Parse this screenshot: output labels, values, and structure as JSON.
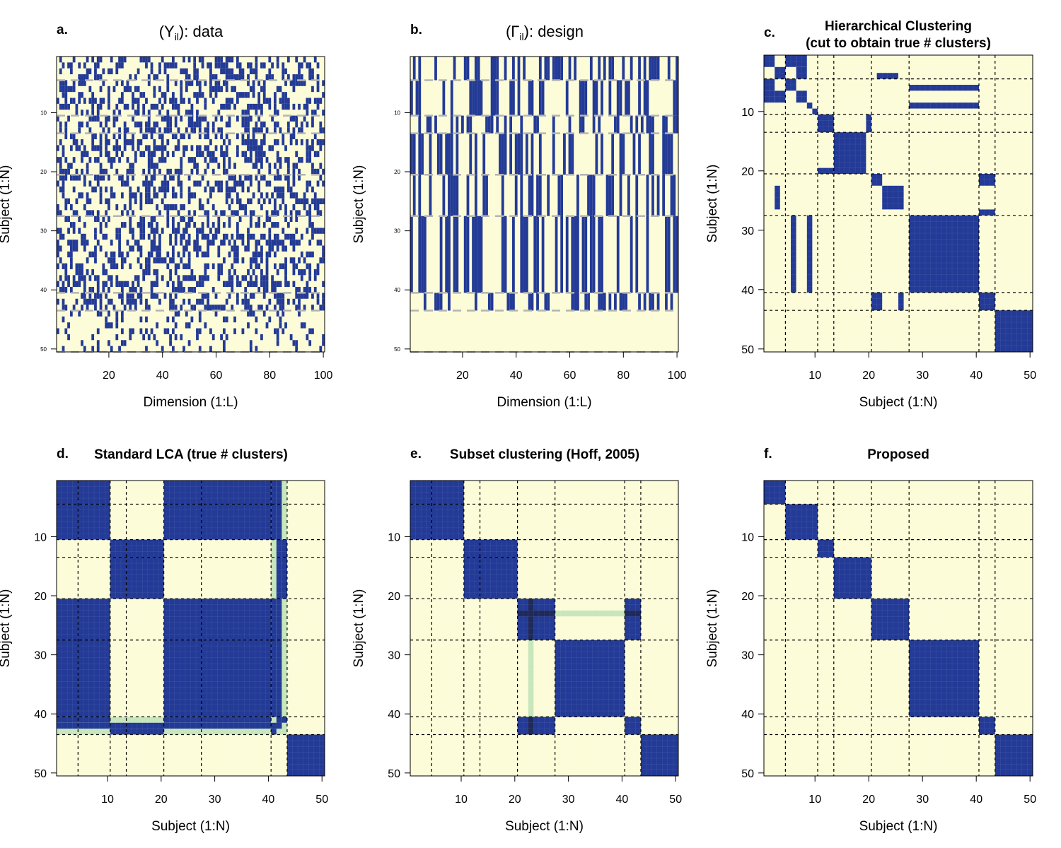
{
  "colors": {
    "zero": "#fcfcd8",
    "one": "#233a96",
    "mid": "#c8e6bc",
    "background": "#ffffff"
  },
  "grid": {
    "labels": "",
    "style": "dashed"
  },
  "chart_data": [
    {
      "type": "heatmap",
      "panel_label": "a.",
      "title": "(Y",
      "title_sub": "il",
      "title_rest": "): data",
      "xlabel": "Dimension (1:L)",
      "ylabel": "Subject (1:N)",
      "n_rows": 50,
      "n_cols": 100,
      "xticks": [
        20,
        40,
        60,
        80,
        100
      ],
      "yticks": [
        10,
        20,
        30,
        40,
        50
      ],
      "cluster_boundaries": [
        4,
        10,
        13,
        20,
        27,
        40,
        43,
        50
      ],
      "cluster_sizes": [
        4,
        6,
        3,
        7,
        7,
        13,
        3,
        7
      ],
      "note": "binary random data"
    },
    {
      "type": "heatmap",
      "panel_label": "b.",
      "title": "(Γ",
      "title_sub": "il",
      "title_rest": "): design",
      "xlabel": "Dimension (1:L)",
      "ylabel": "Subject (1:N)",
      "n_rows": 50,
      "n_cols": 100,
      "xticks": [
        20,
        40,
        60,
        80,
        100
      ],
      "yticks": [
        10,
        20,
        30,
        40,
        50
      ],
      "cluster_boundaries": [
        4,
        10,
        13,
        20,
        27,
        40,
        43,
        50
      ],
      "cluster_sizes": [
        4,
        6,
        3,
        7,
        7,
        13,
        3,
        7
      ]
    },
    {
      "type": "heatmap",
      "panel_label": "c.",
      "title": "Hierarchical Clustering",
      "title2": "(cut to obtain true # clusters)",
      "xlabel": "Subject (1:N)",
      "ylabel": "Subject (1:N)",
      "n": 50,
      "ticks": [
        10,
        20,
        30,
        40,
        50
      ],
      "cluster_boundaries": [
        4,
        10,
        13,
        20,
        27,
        40,
        43
      ],
      "blocks": [
        {
          "rows": [
            1,
            2
          ],
          "cols": [
            1,
            2
          ]
        },
        {
          "rows": [
            1,
            2
          ],
          "cols": [
            5,
            6
          ]
        },
        {
          "rows": [
            1,
            2
          ],
          "cols": [
            7,
            8
          ]
        },
        {
          "rows": [
            3,
            4
          ],
          "cols": [
            3,
            4
          ]
        },
        {
          "rows": [
            3,
            4
          ],
          "cols": [
            7,
            8
          ]
        },
        {
          "rows": [
            5,
            6
          ],
          "cols": [
            1,
            2
          ]
        },
        {
          "rows": [
            5,
            6
          ],
          "cols": [
            5,
            6
          ]
        },
        {
          "rows": [
            7,
            8
          ],
          "cols": [
            1,
            2
          ]
        },
        {
          "rows": [
            7,
            8
          ],
          "cols": [
            3,
            4
          ]
        },
        {
          "rows": [
            7,
            8
          ],
          "cols": [
            7,
            8
          ]
        },
        {
          "rows": [
            9,
            9
          ],
          "cols": [
            9,
            9
          ]
        },
        {
          "rows": [
            10,
            10
          ],
          "cols": [
            10,
            10
          ]
        },
        {
          "rows": [
            4,
            4
          ],
          "cols": [
            22,
            25
          ]
        },
        {
          "rows": [
            6,
            6
          ],
          "cols": [
            28,
            40
          ]
        },
        {
          "rows": [
            9,
            9
          ],
          "cols": [
            28,
            40
          ]
        },
        {
          "rows": [
            11,
            13
          ],
          "cols": [
            11,
            13
          ]
        },
        {
          "rows": [
            11,
            13
          ],
          "cols": [
            20,
            20
          ]
        },
        {
          "rows": [
            14,
            20
          ],
          "cols": [
            14,
            19
          ]
        },
        {
          "rows": [
            20,
            20
          ],
          "cols": [
            11,
            13
          ]
        },
        {
          "rows": [
            21,
            22
          ],
          "cols": [
            21,
            22
          ]
        },
        {
          "rows": [
            21,
            22
          ],
          "cols": [
            41,
            43
          ]
        },
        {
          "rows": [
            23,
            26
          ],
          "cols": [
            23,
            26
          ]
        },
        {
          "rows": [
            23,
            26
          ],
          "cols": [
            3,
            3
          ]
        },
        {
          "rows": [
            27,
            27
          ],
          "cols": [
            41,
            43
          ]
        },
        {
          "rows": [
            28,
            40
          ],
          "cols": [
            6,
            6
          ]
        },
        {
          "rows": [
            28,
            40
          ],
          "cols": [
            9,
            9
          ]
        },
        {
          "rows": [
            28,
            40
          ],
          "cols": [
            28,
            40
          ]
        },
        {
          "rows": [
            41,
            43
          ],
          "cols": [
            21,
            22
          ]
        },
        {
          "rows": [
            41,
            43
          ],
          "cols": [
            26,
            26
          ]
        },
        {
          "rows": [
            41,
            43
          ],
          "cols": [
            41,
            43
          ]
        },
        {
          "rows": [
            44,
            50
          ],
          "cols": [
            44,
            50
          ]
        }
      ]
    },
    {
      "type": "heatmap",
      "panel_label": "d.",
      "title": "Standard LCA (true # clusters)",
      "xlabel": "Subject (1:N)",
      "ylabel": "Subject (1:N)",
      "n": 50,
      "ticks": [
        10,
        20,
        30,
        40,
        50
      ],
      "cluster_boundaries": [
        4,
        10,
        13,
        20,
        27,
        40,
        43
      ],
      "groups": [
        [
          1,
          10
        ],
        [
          11,
          20
        ],
        [
          1,
          10
        ],
        [
          21,
          40
        ]
      ],
      "blocks": [
        {
          "rows": [
            1,
            10
          ],
          "cols": [
            1,
            10
          ]
        },
        {
          "rows": [
            1,
            10
          ],
          "cols": [
            21,
            40
          ]
        },
        {
          "rows": [
            21,
            40
          ],
          "cols": [
            1,
            10
          ]
        },
        {
          "rows": [
            21,
            40
          ],
          "cols": [
            21,
            40
          ]
        },
        {
          "rows": [
            11,
            20
          ],
          "cols": [
            11,
            20
          ]
        },
        {
          "rows": [
            41,
            41
          ],
          "cols": [
            1,
            10
          ]
        },
        {
          "rows": [
            41,
            41
          ],
          "cols": [
            21,
            40
          ]
        },
        {
          "rows": [
            1,
            10
          ],
          "cols": [
            41,
            41
          ]
        },
        {
          "rows": [
            21,
            40
          ],
          "cols": [
            41,
            41
          ]
        },
        {
          "rows": [
            42,
            42
          ],
          "cols": [
            1,
            42
          ]
        },
        {
          "rows": [
            1,
            42
          ],
          "cols": [
            42,
            42
          ]
        },
        {
          "rows": [
            43,
            43
          ],
          "cols": [
            11,
            20
          ]
        },
        {
          "rows": [
            11,
            20
          ],
          "cols": [
            43,
            43
          ]
        },
        {
          "rows": [
            41,
            41
          ],
          "cols": [
            43,
            43
          ]
        },
        {
          "rows": [
            43,
            43
          ],
          "cols": [
            41,
            41
          ]
        },
        {
          "rows": [
            44,
            50
          ],
          "cols": [
            44,
            50
          ]
        }
      ],
      "mid_blocks": [
        {
          "rows": [
            41,
            43
          ],
          "cols": [
            1,
            43
          ]
        },
        {
          "rows": [
            1,
            43
          ],
          "cols": [
            41,
            43
          ]
        }
      ]
    },
    {
      "type": "heatmap",
      "panel_label": "e.",
      "title": "Subset clustering (Hoff, 2005)",
      "xlabel": "Subject (1:N)",
      "ylabel": "Subject (1:N)",
      "n": 50,
      "ticks": [
        10,
        20,
        30,
        40,
        50
      ],
      "cluster_boundaries": [
        4,
        10,
        13,
        20,
        27,
        40,
        43
      ],
      "blocks": [
        {
          "rows": [
            1,
            10
          ],
          "cols": [
            1,
            10
          ]
        },
        {
          "rows": [
            11,
            20
          ],
          "cols": [
            11,
            20
          ]
        },
        {
          "rows": [
            21,
            27
          ],
          "cols": [
            21,
            27
          ]
        },
        {
          "rows": [
            21,
            27
          ],
          "cols": [
            41,
            43
          ]
        },
        {
          "rows": [
            41,
            43
          ],
          "cols": [
            21,
            27
          ]
        },
        {
          "rows": [
            41,
            43
          ],
          "cols": [
            41,
            43
          ]
        },
        {
          "rows": [
            28,
            40
          ],
          "cols": [
            28,
            40
          ]
        },
        {
          "rows": [
            44,
            50
          ],
          "cols": [
            44,
            50
          ]
        }
      ],
      "mid_blocks": [
        {
          "rows": [
            23,
            23
          ],
          "cols": [
            28,
            40
          ]
        },
        {
          "rows": [
            28,
            40
          ],
          "cols": [
            23,
            23
          ]
        }
      ],
      "dark_lines": [
        {
          "rows": [
            23,
            23
          ],
          "cols": [
            21,
            27
          ]
        },
        {
          "rows": [
            23,
            23
          ],
          "cols": [
            41,
            43
          ]
        },
        {
          "rows": [
            21,
            27
          ],
          "cols": [
            23,
            23
          ]
        },
        {
          "rows": [
            41,
            43
          ],
          "cols": [
            23,
            23
          ]
        }
      ]
    },
    {
      "type": "heatmap",
      "panel_label": "f.",
      "title": "Proposed",
      "xlabel": "Subject (1:N)",
      "ylabel": "Subject (1:N)",
      "n": 50,
      "ticks": [
        10,
        20,
        30,
        40,
        50
      ],
      "cluster_boundaries": [
        4,
        10,
        13,
        20,
        27,
        40,
        43
      ],
      "blocks": [
        {
          "rows": [
            1,
            4
          ],
          "cols": [
            1,
            4
          ]
        },
        {
          "rows": [
            5,
            10
          ],
          "cols": [
            5,
            10
          ]
        },
        {
          "rows": [
            11,
            13
          ],
          "cols": [
            11,
            13
          ]
        },
        {
          "rows": [
            14,
            20
          ],
          "cols": [
            14,
            20
          ]
        },
        {
          "rows": [
            21,
            27
          ],
          "cols": [
            21,
            27
          ]
        },
        {
          "rows": [
            28,
            40
          ],
          "cols": [
            28,
            40
          ]
        },
        {
          "rows": [
            41,
            43
          ],
          "cols": [
            41,
            43
          ]
        },
        {
          "rows": [
            44,
            50
          ],
          "cols": [
            44,
            50
          ]
        }
      ]
    }
  ]
}
